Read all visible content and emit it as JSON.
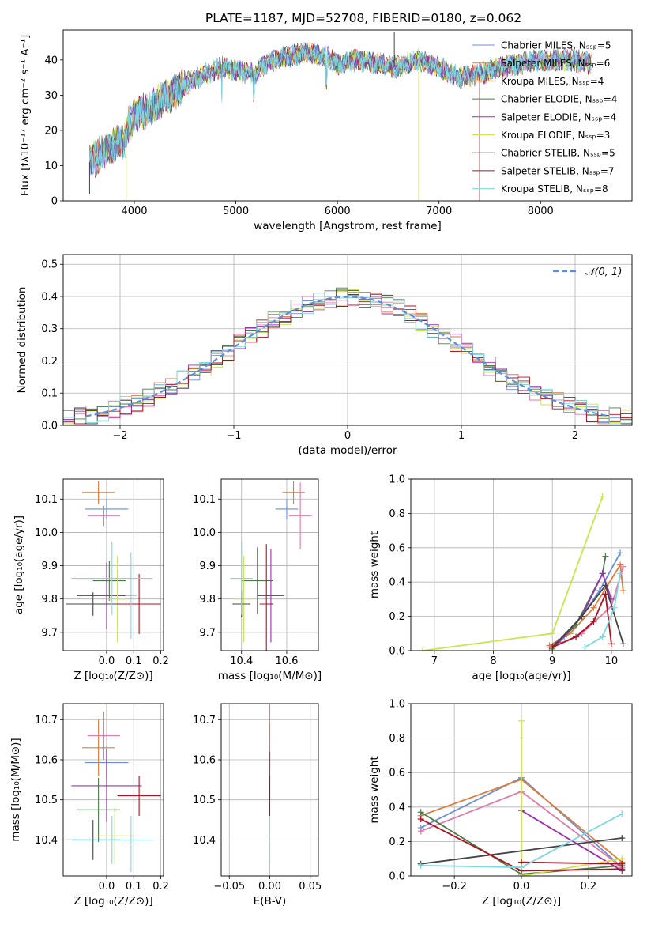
{
  "figure_title": "PLATE=1187, MJD=52708, FIBERID=0180, z=0.062",
  "colors": {
    "CM": "#6b8fd6",
    "SM": "#e07b39",
    "KM": "#e07b39",
    "CE": "#4a7a4a",
    "SE": "#9b30b0",
    "KE": "#c8e64a",
    "CS": "#444444",
    "SS": "#b01020",
    "KS": "#7dd8e0",
    "pink": "#e07aa8",
    "dashed": "#5b8fdc",
    "grid": "#b0b0b0"
  },
  "chart_data": [
    {
      "id": "spectrum",
      "type": "line",
      "title": "PLATE=1187, MJD=52708, FIBERID=0180, z=0.062",
      "xlabel": "wavelength [Angstrom, rest frame]",
      "ylabel": "Flux [fλ10⁻¹⁷ erg cm⁻² s⁻¹ A⁻¹]",
      "xlim": [
        3300,
        8900
      ],
      "ylim": [
        0,
        48.5
      ],
      "xticks": [
        4000,
        5000,
        6000,
        7000,
        8000
      ],
      "yticks": [
        0,
        10,
        20,
        30,
        40
      ],
      "grid": false,
      "legend_position": "top-right",
      "continuum": {
        "x": [
          3560,
          3650,
          3800,
          3900,
          3950,
          4000,
          4150,
          4300,
          4500,
          4700,
          4862,
          5000,
          5175,
          5300,
          5500,
          5700,
          5890,
          6000,
          6200,
          6400,
          6563,
          6700,
          6800,
          7000,
          7200,
          7400,
          7600,
          7800,
          8000,
          8300,
          8500
        ],
        "y": [
          11,
          13,
          16,
          17,
          22,
          24,
          26,
          29,
          33,
          36,
          38,
          37,
          36,
          39,
          41,
          42,
          41,
          39,
          40,
          39,
          38,
          39,
          40,
          38,
          35,
          36,
          38,
          39,
          40,
          40,
          39
        ]
      },
      "series": [
        {
          "name": "Chabrier MILES, Nₛₛₚ=5",
          "color_key": "CM"
        },
        {
          "name": "Salpeter MILES, Nₛₛₚ=6",
          "color_key": "SM"
        },
        {
          "name": "Kroupa MILES, Nₛₛₚ=4",
          "color_key": "KM"
        },
        {
          "name": "Chabrier ELODIE, Nₛₛₚ=4",
          "color_key": "CE"
        },
        {
          "name": "Salpeter ELODIE, Nₛₛₚ=4",
          "color_key": "SE"
        },
        {
          "name": "Kroupa ELODIE, Nₛₛₚ=3",
          "color_key": "KE"
        },
        {
          "name": "Chabrier STELIB, Nₛₛₚ=5",
          "color_key": "CS"
        },
        {
          "name": "Salpeter STELIB, Nₛₛₚ=7",
          "color_key": "SS"
        },
        {
          "name": "Kroupa STELIB, Nₛₛₚ=8",
          "color_key": "KS"
        }
      ]
    },
    {
      "id": "residuals",
      "type": "line",
      "xlabel": "(data-model)/error",
      "ylabel": "Normed distribution",
      "xlim": [
        -2.5,
        2.5
      ],
      "ylim": [
        0,
        0.53
      ],
      "xticks": [
        -2,
        -1,
        0,
        1,
        2
      ],
      "yticks": [
        0.0,
        0.1,
        0.2,
        0.3,
        0.4,
        0.5
      ],
      "grid": true,
      "legend_position": "top-right",
      "legend": "𝒩(0, 1)"
    },
    {
      "id": "age_vs_Z",
      "type": "scatter",
      "xlabel": "Z [log₁₀(Z/Z⊙)]",
      "ylabel": "age  [log₁₀(age/yr)]",
      "xlim": [
        -0.16,
        0.21
      ],
      "ylim": [
        9.645,
        10.16
      ],
      "xticks": [
        0.0,
        0.1,
        0.2
      ],
      "yticks": [
        9.7,
        9.8,
        9.9,
        10.0,
        10.1
      ],
      "grid": true,
      "points": [
        {
          "c": "CM",
          "x": 0.0,
          "xe": 0.08,
          "y": 10.07,
          "ye": 0.03
        },
        {
          "c": "SM",
          "x": -0.03,
          "xe": 0.06,
          "y": 10.12,
          "ye": 0.035
        },
        {
          "c": "pink",
          "x": -0.01,
          "xe": 0.06,
          "y": 10.05,
          "ye": 0.03
        },
        {
          "c": "CE",
          "x": 0.01,
          "xe": 0.06,
          "y": 9.855,
          "ye": 0.06
        },
        {
          "c": "SE",
          "x": 0.0,
          "xe": 0.11,
          "y": 9.81,
          "ye": 0.1
        },
        {
          "c": "KE",
          "x": 0.04,
          "xe": 0.04,
          "y": 9.8,
          "ye": 0.13
        },
        {
          "c": "CS",
          "x": -0.05,
          "xe": 0.1,
          "y": 9.785,
          "ye": 0.035
        },
        {
          "c": "SS",
          "x": 0.12,
          "xe": 0.08,
          "y": 9.785,
          "ye": 0.09
        },
        {
          "c": "KS",
          "x": 0.02,
          "xe": 0.15,
          "y": 9.862,
          "ye": 0.11
        },
        {
          "c": "KS",
          "x": 0.09,
          "xe": 0.02,
          "y": 9.81,
          "ye": 0.13
        }
      ]
    },
    {
      "id": "age_vs_mass",
      "type": "scatter",
      "xlabel": "mass [log₁₀(M/M⊙)]",
      "ylabel": "",
      "xlim": [
        10.31,
        10.74
      ],
      "ylim": [
        9.645,
        10.16
      ],
      "xticks": [
        10.4,
        10.6
      ],
      "yticks": [
        9.7,
        9.8,
        9.9,
        10.0,
        10.1
      ],
      "grid": true,
      "points": [
        {
          "c": "CM",
          "x": 10.6,
          "xe": 0.05,
          "y": 10.07,
          "ye": 0.03
        },
        {
          "c": "SM",
          "x": 10.63,
          "xe": 0.05,
          "y": 10.12,
          "ye": 0.035
        },
        {
          "c": "pink",
          "x": 10.66,
          "xe": 0.05,
          "y": 10.05,
          "ye": 0.1
        },
        {
          "c": "CE",
          "x": 10.47,
          "xe": 0.07,
          "y": 9.855,
          "ye": 0.1
        },
        {
          "c": "SE",
          "x": 10.53,
          "xe": 0.06,
          "y": 9.81,
          "ye": 0.14
        },
        {
          "c": "KE",
          "x": 10.41,
          "xe": 0.04,
          "y": 9.8,
          "ye": 0.13
        },
        {
          "c": "CS",
          "x": 10.4,
          "xe": 0.04,
          "y": 9.785,
          "ye": 0.04
        },
        {
          "c": "SS",
          "x": 10.51,
          "xe": 0.03,
          "y": 9.785,
          "ye": 0.18
        },
        {
          "c": "KS",
          "x": 10.4,
          "xe": 0.05,
          "y": 9.862,
          "ye": 0.11
        }
      ]
    },
    {
      "id": "mass_weight_vs_age",
      "type": "line",
      "xlabel": "age  [log₁₀(age/yr)]",
      "ylabel": "mass weight",
      "xlim": [
        6.6,
        10.35
      ],
      "ylim": [
        0,
        1.0
      ],
      "xticks": [
        7,
        8,
        9,
        10
      ],
      "yticks": [
        0.0,
        0.2,
        0.4,
        0.6,
        0.8,
        1.0
      ],
      "grid": true,
      "series": [
        {
          "c": "KE",
          "x": [
            6.8,
            9.0,
            9.85
          ],
          "y": [
            0.0,
            0.1,
            0.9
          ]
        },
        {
          "c": "CM",
          "x": [
            8.95,
            9.2,
            9.5,
            9.8,
            10.15
          ],
          "y": [
            0.02,
            0.08,
            0.2,
            0.35,
            0.57
          ]
        },
        {
          "c": "SM",
          "x": [
            8.95,
            9.3,
            9.7,
            10.15,
            10.2
          ],
          "y": [
            0.03,
            0.1,
            0.25,
            0.5,
            0.35
          ]
        },
        {
          "c": "pink",
          "x": [
            9.0,
            9.5,
            10.0,
            10.2
          ],
          "y": [
            0.02,
            0.1,
            0.26,
            0.49
          ]
        },
        {
          "c": "CE",
          "x": [
            9.0,
            9.4,
            9.85,
            9.9
          ],
          "y": [
            0.01,
            0.15,
            0.45,
            0.55
          ]
        },
        {
          "c": "SE",
          "x": [
            9.1,
            9.5,
            9.85,
            10.0
          ],
          "y": [
            0.05,
            0.2,
            0.45,
            0.3
          ]
        },
        {
          "c": "CS",
          "x": [
            9.0,
            9.5,
            9.9,
            10.2
          ],
          "y": [
            0.02,
            0.2,
            0.38,
            0.04
          ]
        },
        {
          "c": "SS",
          "x": [
            9.0,
            9.4,
            9.7,
            9.9,
            10.0
          ],
          "y": [
            0.02,
            0.08,
            0.17,
            0.33,
            0.04
          ]
        },
        {
          "c": "KS",
          "x": [
            9.55,
            9.85,
            10.05,
            10.15
          ],
          "y": [
            0.02,
            0.08,
            0.25,
            0.45
          ]
        }
      ]
    },
    {
      "id": "mass_vs_Z",
      "type": "scatter",
      "xlabel": "Z [log₁₀(Z/Z⊙)]",
      "ylabel": "mass [log₁₀(M/M⊙)]",
      "xlim": [
        -0.16,
        0.21
      ],
      "ylim": [
        10.31,
        10.74
      ],
      "xticks": [
        0.0,
        0.1,
        0.2
      ],
      "yticks": [
        10.4,
        10.5,
        10.6,
        10.7
      ],
      "grid": true,
      "points": [
        {
          "c": "CM",
          "x": 0.0,
          "xe": 0.08,
          "y": 10.593,
          "ye": 0.04
        },
        {
          "c": "SM",
          "x": -0.03,
          "xe": 0.06,
          "y": 10.63,
          "ye": 0.07
        },
        {
          "c": "pink",
          "x": -0.01,
          "xe": 0.06,
          "y": 10.66,
          "ye": 0.06
        },
        {
          "c": "CE",
          "x": -0.03,
          "xe": 0.08,
          "y": 10.475,
          "ye": 0.08
        },
        {
          "c": "SE",
          "x": 0.0,
          "xe": 0.13,
          "y": 10.535,
          "ye": 0.09
        },
        {
          "c": "KE",
          "x": 0.03,
          "xe": 0.07,
          "y": 10.41,
          "ye": 0.07
        },
        {
          "c": "CS",
          "x": -0.05,
          "xe": 0.1,
          "y": 10.4,
          "ye": 0.05
        },
        {
          "c": "SS",
          "x": 0.12,
          "xe": 0.08,
          "y": 10.51,
          "ye": 0.05
        },
        {
          "c": "KS",
          "x": 0.02,
          "xe": 0.15,
          "y": 10.4,
          "ye": 0.06
        },
        {
          "c": "KS",
          "x": 0.09,
          "xe": 0.02,
          "y": 10.39,
          "ye": 0.07
        }
      ]
    },
    {
      "id": "mass_vs_ebv",
      "type": "scatter",
      "xlabel": "E(B-V)",
      "ylabel": "",
      "xlim": [
        -0.06,
        0.06
      ],
      "ylim": [
        10.31,
        10.74
      ],
      "xticks": [
        -0.05,
        0.0,
        0.05
      ],
      "yticks": [
        10.4,
        10.5,
        10.6,
        10.7
      ],
      "grid": true,
      "points": [
        {
          "c": "pink",
          "x": 0.0,
          "xe": 0.0,
          "y": 10.66,
          "ye": 0.08
        },
        {
          "c": "SM",
          "x": 0.0,
          "xe": 0.0,
          "y": 10.63,
          "ye": 0.06
        },
        {
          "c": "SE",
          "x": 0.0,
          "xe": 0.0,
          "y": 10.56,
          "ye": 0.06
        },
        {
          "c": "SS",
          "x": 0.0,
          "xe": 0.0,
          "y": 10.51,
          "ye": 0.05
        },
        {
          "c": "KS",
          "x": 0.0,
          "xe": 0.0,
          "y": 10.4,
          "ye": 0.06
        }
      ]
    },
    {
      "id": "mass_weight_vs_Z",
      "type": "line",
      "xlabel": "Z [log₁₀(Z/Z⊙)]",
      "ylabel": "mass weight",
      "xlim": [
        -0.33,
        0.33
      ],
      "ylim": [
        0,
        1.0
      ],
      "xticks": [
        -0.2,
        0.0,
        0.2
      ],
      "yticks": [
        0.0,
        0.2,
        0.4,
        0.6,
        0.8,
        1.0
      ],
      "grid": true,
      "series": [
        {
          "c": "CM",
          "x": [
            -0.3,
            0.0,
            0.3
          ],
          "y": [
            0.28,
            0.57,
            0.05
          ]
        },
        {
          "c": "SM",
          "x": [
            -0.3,
            0.0,
            0.3
          ],
          "y": [
            0.35,
            0.56,
            0.08
          ]
        },
        {
          "c": "pink",
          "x": [
            -0.3,
            0.0,
            0.3
          ],
          "y": [
            0.26,
            0.49,
            0.05
          ]
        },
        {
          "c": "CE",
          "x": [
            -0.3,
            0.0,
            0.3
          ],
          "y": [
            0.37,
            0.01,
            0.06
          ]
        },
        {
          "c": "SE",
          "x": [
            0.0,
            0.3
          ],
          "y": [
            0.38,
            0.03
          ]
        },
        {
          "c": "KE",
          "x": [
            0.0,
            0.0,
            0.3
          ],
          "y": [
            0.9,
            0.0,
            0.1
          ]
        },
        {
          "c": "CS",
          "x": [
            -0.3,
            0.3
          ],
          "y": [
            0.07,
            0.22
          ]
        },
        {
          "c": "SS",
          "x": [
            -0.3,
            0.0,
            0.3
          ],
          "y": [
            0.33,
            0.03,
            0.04
          ]
        },
        {
          "c": "SS",
          "x": [
            0.0,
            0.3
          ],
          "y": [
            0.08,
            0.07
          ]
        },
        {
          "c": "KS",
          "x": [
            -0.3,
            0.0,
            0.3
          ],
          "y": [
            0.06,
            0.05,
            0.36
          ]
        }
      ]
    }
  ]
}
